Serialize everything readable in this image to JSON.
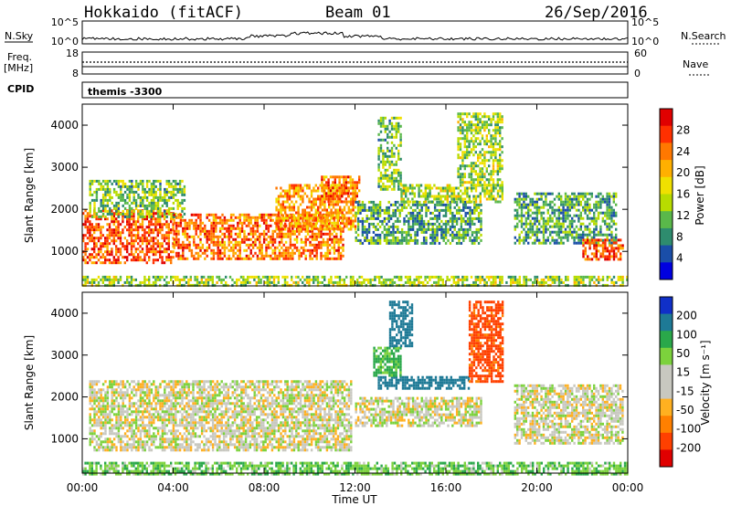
{
  "header": {
    "site": "Hokkaido (fitACF)",
    "beam": "Beam 01",
    "date": "26/Sep/2016"
  },
  "status_panel": {
    "nsky_label": "N.Sky",
    "nsky_ticks": [
      "10^5",
      "10^0"
    ],
    "nsearch_label": "N.Search",
    "nsearch_ticks": [
      "10^5",
      "10^0"
    ],
    "freq_label_1": "Freq.",
    "freq_label_2": "[MHz]",
    "freq_ticks": [
      "18",
      "8"
    ],
    "nave_label": "Nave",
    "nave_ticks": [
      "60",
      "0"
    ],
    "cpid_label": "CPID",
    "program": "themis -3300"
  },
  "chart_data": [
    {
      "type": "heatmap",
      "name": "power",
      "ylabel": "Slant Range [km]",
      "ylim": [
        180,
        4500
      ],
      "yticks": [
        1000,
        2000,
        3000,
        4000
      ],
      "xlim": [
        0,
        24
      ],
      "colorbar_label": "Power [dB]",
      "colorbar_ticks": [
        "28",
        "24",
        "20",
        "16",
        "12",
        "8",
        "4"
      ],
      "colorbar_colors": [
        "#e00000",
        "#ff3000",
        "#ff7800",
        "#ffb000",
        "#f0e000",
        "#b8dc00",
        "#5ab84a",
        "#2e8c6e",
        "#1a4ea8",
        "#0000e0"
      ],
      "regions": [
        {
          "t0": 0.0,
          "t1": 4.0,
          "r0": 700,
          "r1": 2000,
          "v": 26
        },
        {
          "t0": 0.3,
          "t1": 4.5,
          "r0": 1800,
          "r1": 2700,
          "v": 12
        },
        {
          "t0": 4.0,
          "t1": 11.5,
          "r0": 800,
          "r1": 1900,
          "v": 24
        },
        {
          "t0": 8.5,
          "t1": 12.0,
          "r0": 1500,
          "r1": 2600,
          "v": 22
        },
        {
          "t0": 10.5,
          "t1": 12.2,
          "r0": 2200,
          "r1": 2800,
          "v": 24
        },
        {
          "t0": 12.0,
          "t1": 17.5,
          "r0": 1200,
          "r1": 2200,
          "v": 10
        },
        {
          "t0": 13.0,
          "t1": 14.0,
          "r0": 2500,
          "r1": 4200,
          "v": 12
        },
        {
          "t0": 14.0,
          "t1": 18.5,
          "r0": 2200,
          "r1": 2600,
          "v": 14
        },
        {
          "t0": 16.5,
          "t1": 18.5,
          "r0": 2600,
          "r1": 4300,
          "v": 14
        },
        {
          "t0": 19.0,
          "t1": 23.5,
          "r0": 1200,
          "r1": 2400,
          "v": 10
        },
        {
          "t0": 22.0,
          "t1": 23.8,
          "r0": 800,
          "r1": 1300,
          "v": 26
        },
        {
          "t0": 0.0,
          "t1": 24.0,
          "r0": 180,
          "r1": 420,
          "v": 14
        }
      ]
    },
    {
      "type": "heatmap",
      "name": "velocity",
      "ylabel": "Slant Range [km]",
      "ylim": [
        180,
        4500
      ],
      "yticks": [
        1000,
        2000,
        3000,
        4000
      ],
      "xlim": [
        0,
        24
      ],
      "xticks": [
        "00:00",
        "04:00",
        "08:00",
        "12:00",
        "16:00",
        "20:00",
        "00:00"
      ],
      "xlabel": "Time UT",
      "colorbar_label": "Velocity [m s⁻¹]",
      "colorbar_ticks": [
        "200",
        "100",
        "50",
        "15",
        "-15",
        "-50",
        "-100",
        "-200"
      ],
      "colorbar_colors": [
        "#1030c8",
        "#1e7a96",
        "#2aa84a",
        "#7cd23c",
        "#c8c8c0",
        "#c8c8c0",
        "#ffb020",
        "#ff8000",
        "#ff4000",
        "#e00000"
      ],
      "regions": [
        {
          "t0": 0.3,
          "t1": 11.8,
          "r0": 700,
          "r1": 2400,
          "v": 0
        },
        {
          "t0": 12.0,
          "t1": 17.5,
          "r0": 1300,
          "r1": 2000,
          "v": 0
        },
        {
          "t0": 13.0,
          "t1": 17.0,
          "r0": 2200,
          "r1": 2500,
          "v": 160
        },
        {
          "t0": 12.8,
          "t1": 14.0,
          "r0": 2500,
          "r1": 3200,
          "v": 60
        },
        {
          "t0": 13.5,
          "t1": 14.5,
          "r0": 3200,
          "r1": 4300,
          "v": 150
        },
        {
          "t0": 17.0,
          "t1": 18.5,
          "r0": 2400,
          "r1": 4300,
          "v": -120
        },
        {
          "t0": 19.0,
          "t1": 23.8,
          "r0": 900,
          "r1": 2300,
          "v": 0
        },
        {
          "t0": 0.0,
          "t1": 24.0,
          "r0": 180,
          "r1": 450,
          "v": 40
        }
      ]
    }
  ]
}
